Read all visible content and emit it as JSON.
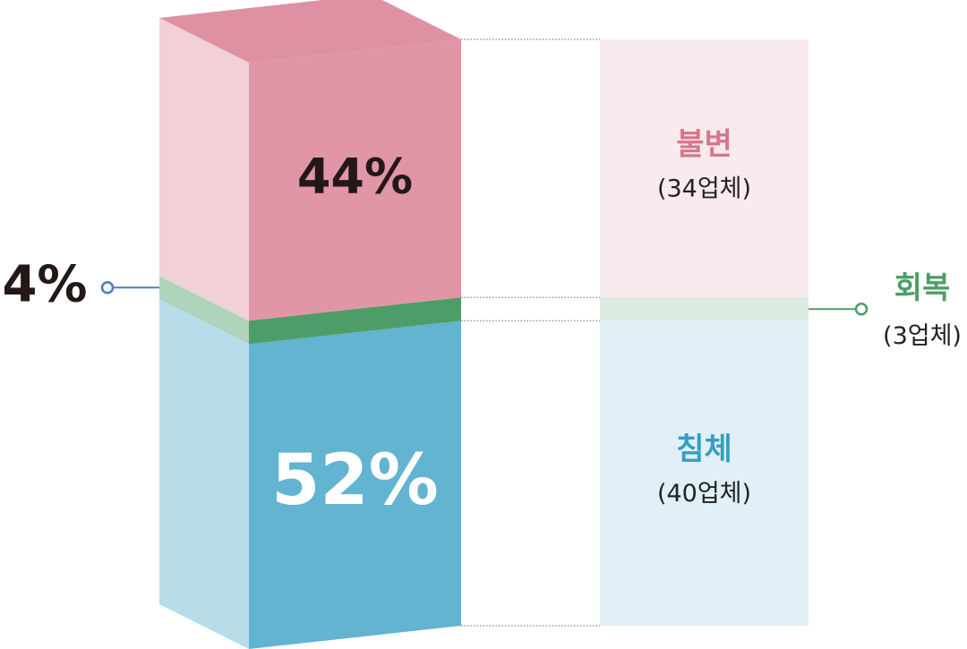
{
  "chart_data": {
    "type": "stacked_bar_3d",
    "ylim": [
      0,
      100
    ],
    "series": [
      {
        "name": "침체",
        "sublabel": "(40업체)",
        "color": "#62b4d1",
        "values": [
          52
        ],
        "value_labels": [
          "52%"
        ]
      },
      {
        "name": "회복",
        "sublabel": "(3업체)",
        "color": "#4e9d68",
        "values": [
          4
        ],
        "value_labels": [
          "4%"
        ]
      },
      {
        "name": "불변",
        "sublabel": "(34업체)",
        "color": "#e096a6",
        "values": [
          44
        ],
        "value_labels": [
          "44%"
        ]
      }
    ]
  }
}
